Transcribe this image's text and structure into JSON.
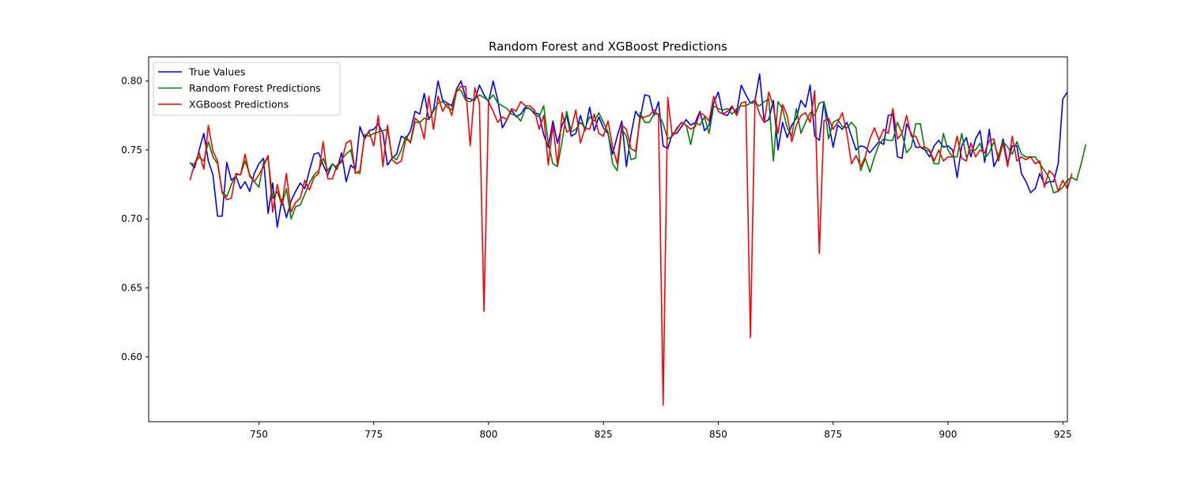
{
  "chart_data": {
    "type": "line",
    "title": "Random Forest and XGBoost Predictions",
    "xlabel": "",
    "ylabel": "",
    "xlim": [
      726,
      926
    ],
    "ylim": [
      0.553,
      0.8175
    ],
    "xticks": [
      750,
      775,
      800,
      825,
      850,
      875,
      900,
      925
    ],
    "yticks": [
      0.6,
      0.65,
      0.7,
      0.75,
      0.8
    ],
    "grid": false,
    "legend_position": "top-left",
    "x_start": 735,
    "series": [
      {
        "name": "True Values",
        "color": "#0000ff",
        "values": [
          0.741,
          0.737,
          0.75,
          0.762,
          0.742,
          0.732,
          0.702,
          0.702,
          0.741,
          0.728,
          0.731,
          0.722,
          0.727,
          0.72,
          0.733,
          0.74,
          0.744,
          0.704,
          0.726,
          0.694,
          0.714,
          0.701,
          0.713,
          0.72,
          0.726,
          0.722,
          0.735,
          0.747,
          0.748,
          0.739,
          0.732,
          0.74,
          0.736,
          0.748,
          0.727,
          0.739,
          0.736,
          0.767,
          0.758,
          0.764,
          0.765,
          0.769,
          0.762,
          0.739,
          0.744,
          0.747,
          0.76,
          0.758,
          0.764,
          0.778,
          0.776,
          0.791,
          0.772,
          0.779,
          0.8,
          0.786,
          0.784,
          0.782,
          0.794,
          0.8,
          0.788,
          0.787,
          0.786,
          0.797,
          0.79,
          0.785,
          0.8,
          0.786,
          0.766,
          0.772,
          0.779,
          0.774,
          0.776,
          0.781,
          0.78,
          0.777,
          0.776,
          0.761,
          0.752,
          0.771,
          0.755,
          0.768,
          0.775,
          0.76,
          0.762,
          0.775,
          0.764,
          0.781,
          0.764,
          0.774,
          0.766,
          0.762,
          0.747,
          0.76,
          0.771,
          0.738,
          0.761,
          0.778,
          0.773,
          0.79,
          0.789,
          0.775,
          0.785,
          0.753,
          0.751,
          0.762,
          0.762,
          0.767,
          0.772,
          0.768,
          0.77,
          0.778,
          0.764,
          0.768,
          0.784,
          0.792,
          0.776,
          0.775,
          0.781,
          0.777,
          0.797,
          0.79,
          0.784,
          0.786,
          0.805,
          0.77,
          0.772,
          0.786,
          0.75,
          0.77,
          0.759,
          0.768,
          0.773,
          0.786,
          0.781,
          0.797,
          0.76,
          0.757,
          0.785,
          0.77,
          0.752,
          0.768,
          0.765,
          0.77,
          0.76,
          0.75,
          0.753,
          0.752,
          0.748,
          0.752,
          0.756,
          0.754,
          0.775,
          0.776,
          0.745,
          0.744,
          0.769,
          0.762,
          0.752,
          0.752,
          0.75,
          0.745,
          0.753,
          0.757,
          0.752,
          0.753,
          0.75,
          0.73,
          0.753,
          0.759,
          0.745,
          0.758,
          0.764,
          0.741,
          0.765,
          0.738,
          0.745,
          0.758,
          0.74,
          0.753,
          0.753,
          0.733,
          0.727,
          0.719,
          0.722,
          0.733,
          0.725,
          0.727,
          0.727,
          0.74,
          0.787,
          0.792
        ]
      },
      {
        "name": "Random Forest Predictions",
        "color": "#008000",
        "values": [
          0.74,
          0.74,
          0.745,
          0.742,
          0.756,
          0.745,
          0.74,
          0.72,
          0.716,
          0.725,
          0.732,
          0.732,
          0.742,
          0.732,
          0.727,
          0.723,
          0.741,
          0.744,
          0.715,
          0.72,
          0.71,
          0.722,
          0.7,
          0.709,
          0.71,
          0.718,
          0.726,
          0.732,
          0.735,
          0.744,
          0.735,
          0.74,
          0.737,
          0.743,
          0.747,
          0.75,
          0.734,
          0.733,
          0.761,
          0.76,
          0.762,
          0.763,
          0.764,
          0.765,
          0.745,
          0.743,
          0.75,
          0.76,
          0.755,
          0.77,
          0.77,
          0.773,
          0.772,
          0.778,
          0.784,
          0.785,
          0.781,
          0.779,
          0.794,
          0.793,
          0.786,
          0.785,
          0.787,
          0.79,
          0.788,
          0.786,
          0.79,
          0.784,
          0.782,
          0.78,
          0.776,
          0.775,
          0.771,
          0.78,
          0.78,
          0.776,
          0.774,
          0.782,
          0.755,
          0.74,
          0.738,
          0.756,
          0.778,
          0.763,
          0.765,
          0.77,
          0.766,
          0.774,
          0.771,
          0.777,
          0.77,
          0.763,
          0.74,
          0.735,
          0.765,
          0.76,
          0.743,
          0.744,
          0.777,
          0.77,
          0.77,
          0.776,
          0.776,
          0.769,
          0.758,
          0.76,
          0.766,
          0.77,
          0.768,
          0.754,
          0.77,
          0.768,
          0.774,
          0.762,
          0.782,
          0.78,
          0.779,
          0.78,
          0.776,
          0.78,
          0.782,
          0.782,
          0.784,
          0.784,
          0.782,
          0.785,
          0.787,
          0.742,
          0.785,
          0.78,
          0.766,
          0.76,
          0.78,
          0.762,
          0.77,
          0.777,
          0.775,
          0.784,
          0.785,
          0.758,
          0.77,
          0.772,
          0.767,
          0.766,
          0.77,
          0.766,
          0.735,
          0.744,
          0.734,
          0.745,
          0.754,
          0.758,
          0.757,
          0.757,
          0.77,
          0.762,
          0.748,
          0.752,
          0.769,
          0.769,
          0.75,
          0.749,
          0.74,
          0.74,
          0.762,
          0.75,
          0.745,
          0.745,
          0.762,
          0.745,
          0.75,
          0.75,
          0.755,
          0.744,
          0.748,
          0.756,
          0.745,
          0.756,
          0.752,
          0.747,
          0.756,
          0.747,
          0.745,
          0.745,
          0.745,
          0.74,
          0.735,
          0.73,
          0.719,
          0.72,
          0.723,
          0.728,
          0.73,
          0.728,
          0.74,
          0.754
        ]
      },
      {
        "name": "XGBoost Predictions",
        "color": "#ff0000",
        "values": [
          0.728,
          0.74,
          0.748,
          0.736,
          0.768,
          0.749,
          0.742,
          0.719,
          0.714,
          0.715,
          0.733,
          0.732,
          0.747,
          0.731,
          0.727,
          0.732,
          0.738,
          0.746,
          0.705,
          0.725,
          0.71,
          0.733,
          0.705,
          0.712,
          0.715,
          0.728,
          0.721,
          0.73,
          0.733,
          0.756,
          0.729,
          0.729,
          0.739,
          0.741,
          0.755,
          0.757,
          0.733,
          0.735,
          0.76,
          0.763,
          0.753,
          0.775,
          0.738,
          0.768,
          0.743,
          0.74,
          0.742,
          0.758,
          0.756,
          0.773,
          0.77,
          0.758,
          0.789,
          0.765,
          0.789,
          0.778,
          0.784,
          0.775,
          0.792,
          0.796,
          0.796,
          0.753,
          0.795,
          0.784,
          0.633,
          0.785,
          0.778,
          0.77,
          0.774,
          0.772,
          0.78,
          0.778,
          0.785,
          0.782,
          0.782,
          0.779,
          0.765,
          0.775,
          0.739,
          0.768,
          0.739,
          0.777,
          0.763,
          0.765,
          0.779,
          0.755,
          0.766,
          0.765,
          0.776,
          0.762,
          0.76,
          0.771,
          0.752,
          0.74,
          0.768,
          0.765,
          0.751,
          0.749,
          0.773,
          0.774,
          0.775,
          0.779,
          0.775,
          0.565,
          0.788,
          0.76,
          0.765,
          0.77,
          0.768,
          0.765,
          0.767,
          0.777,
          0.775,
          0.771,
          0.789,
          0.778,
          0.776,
          0.778,
          0.782,
          0.775,
          0.784,
          0.785,
          0.614,
          0.787,
          0.776,
          0.77,
          0.792,
          0.781,
          0.762,
          0.783,
          0.775,
          0.756,
          0.768,
          0.775,
          0.777,
          0.77,
          0.793,
          0.675,
          0.771,
          0.773,
          0.765,
          0.77,
          0.777,
          0.762,
          0.74,
          0.746,
          0.738,
          0.745,
          0.758,
          0.766,
          0.757,
          0.765,
          0.762,
          0.78,
          0.758,
          0.762,
          0.775,
          0.76,
          0.76,
          0.752,
          0.752,
          0.75,
          0.742,
          0.75,
          0.742,
          0.745,
          0.745,
          0.76,
          0.744,
          0.742,
          0.755,
          0.745,
          0.75,
          0.748,
          0.757,
          0.758,
          0.742,
          0.755,
          0.738,
          0.76,
          0.742,
          0.745,
          0.743,
          0.745,
          0.74,
          0.742,
          0.723,
          0.735,
          0.732,
          0.72,
          0.728,
          0.722,
          0.733
        ]
      }
    ]
  }
}
